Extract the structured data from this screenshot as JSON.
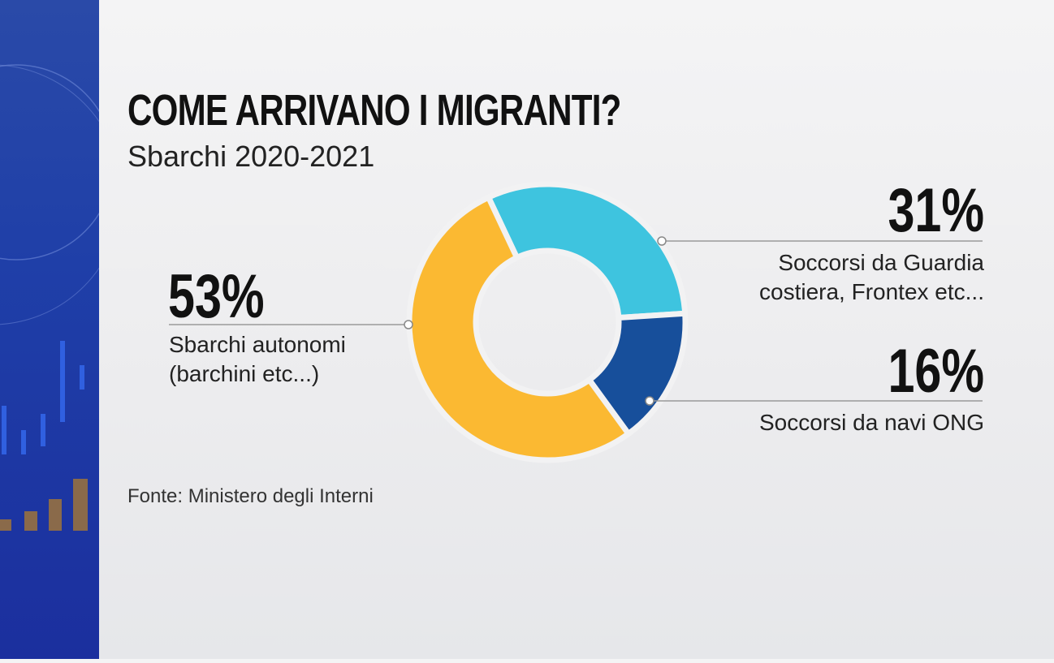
{
  "chart_data": {
    "type": "pie",
    "donut": true,
    "title": "COME ARRIVANO I MIGRANTI?",
    "subtitle": "Sbarchi 2020-2021",
    "source": "Fonte:  Ministero degli Interni",
    "categories": [
      "Soccorsi da Guardia costiera, Frontex etc...",
      "Soccorsi da navi ONG",
      "Sbarchi autonomi (barchini etc...)"
    ],
    "values": [
      31,
      16,
      53
    ],
    "value_labels": [
      "31%",
      "16%",
      "53%"
    ],
    "colors": [
      "#3ec4df",
      "#174f9b",
      "#fbb932"
    ]
  }
}
